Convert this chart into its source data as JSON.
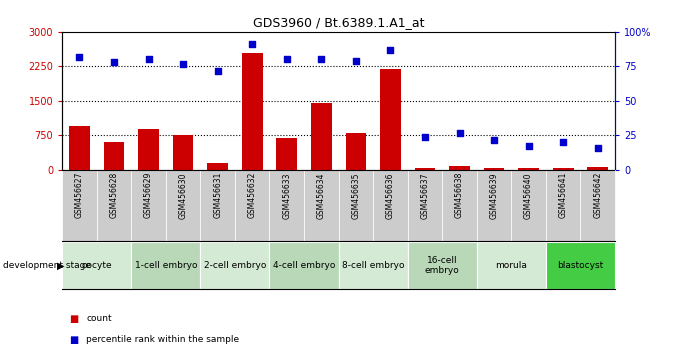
{
  "title": "GDS3960 / Bt.6389.1.A1_at",
  "samples": [
    "GSM456627",
    "GSM456628",
    "GSM456629",
    "GSM456630",
    "GSM456631",
    "GSM456632",
    "GSM456633",
    "GSM456634",
    "GSM456635",
    "GSM456636",
    "GSM456637",
    "GSM456638",
    "GSM456639",
    "GSM456640",
    "GSM456641",
    "GSM456642"
  ],
  "counts": [
    950,
    600,
    900,
    750,
    160,
    2550,
    700,
    1460,
    800,
    2200,
    40,
    80,
    50,
    50,
    40,
    60
  ],
  "percentiles": [
    82,
    78,
    80,
    77,
    72,
    91,
    80,
    80,
    79,
    87,
    24,
    27,
    22,
    17,
    20,
    16
  ],
  "bar_color": "#cc0000",
  "dot_color": "#0000cc",
  "ylim_left": [
    0,
    3000
  ],
  "ylim_right": [
    0,
    100
  ],
  "yticks_left": [
    0,
    750,
    1500,
    2250,
    3000
  ],
  "yticks_right": [
    0,
    25,
    50,
    75,
    100
  ],
  "gridlines": [
    750,
    1500,
    2250
  ],
  "stage_groups": [
    {
      "label": "oocyte",
      "samples": [
        "GSM456627",
        "GSM456628"
      ],
      "color": "#d4ead4"
    },
    {
      "label": "1-cell embryo",
      "samples": [
        "GSM456629",
        "GSM456630"
      ],
      "color": "#b8d8b8"
    },
    {
      "label": "2-cell embryo",
      "samples": [
        "GSM456631",
        "GSM456632"
      ],
      "color": "#d4ead4"
    },
    {
      "label": "4-cell embryo",
      "samples": [
        "GSM456633",
        "GSM456634"
      ],
      "color": "#b8d8b8"
    },
    {
      "label": "8-cell embryo",
      "samples": [
        "GSM456635",
        "GSM456636"
      ],
      "color": "#d4ead4"
    },
    {
      "label": "16-cell\nembryo",
      "samples": [
        "GSM456637",
        "GSM456638"
      ],
      "color": "#b8d8b8"
    },
    {
      "label": "morula",
      "samples": [
        "GSM456639",
        "GSM456640"
      ],
      "color": "#d4ead4"
    },
    {
      "label": "blastocyst",
      "samples": [
        "GSM456641",
        "GSM456642"
      ],
      "color": "#44cc44"
    }
  ],
  "background_color": "#ffffff",
  "tick_area_color": "#cccccc",
  "legend_count_color": "#cc0000",
  "legend_dot_color": "#0000cc"
}
